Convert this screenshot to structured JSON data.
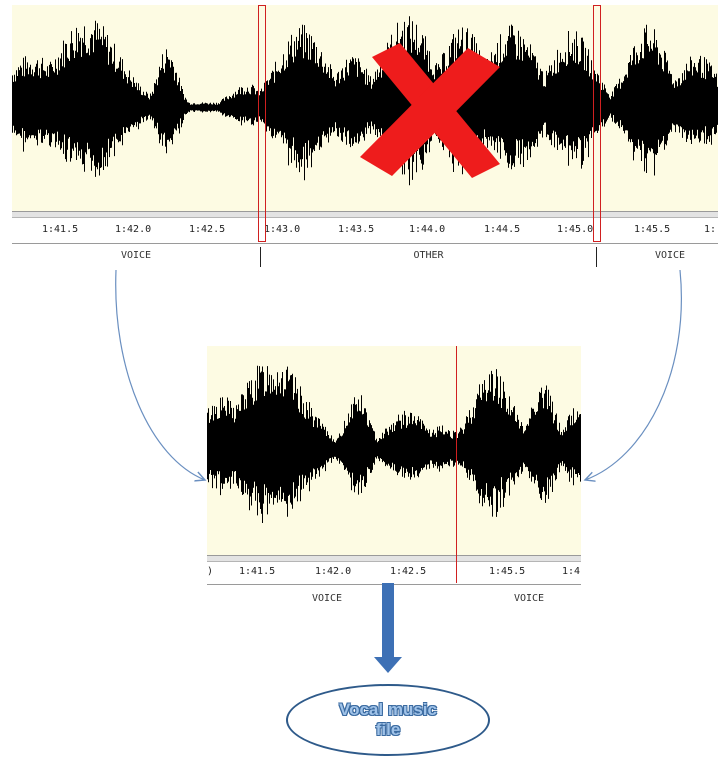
{
  "top_panel": {
    "ticks": [
      "1:41.5",
      "1:42.0",
      "1:42.5",
      "1:43.0",
      "1:43.5",
      "1:44.0",
      "1:44.5",
      "1:45.0",
      "1:45.5",
      "1:"
    ],
    "segments": [
      "VOICE",
      "OTHER",
      "VOICE"
    ]
  },
  "bottom_panel": {
    "ticks": [
      ")",
      "1:41.5",
      "1:42.0",
      "1:42.5",
      "1:45.5",
      "1:4"
    ],
    "segments": [
      "VOICE",
      "VOICE"
    ]
  },
  "output": {
    "label_line1": "Vocal music",
    "label_line2": "file"
  },
  "colors": {
    "panel_bg": "#fdfbe3",
    "waveform": "#000000",
    "marker": "#d02020",
    "cross": "#ee1c1c",
    "arrow": "#6a8fc0",
    "down_arrow": "#3d70b5"
  },
  "icons": {
    "remove": "red-x-icon",
    "down": "down-arrow-icon"
  }
}
